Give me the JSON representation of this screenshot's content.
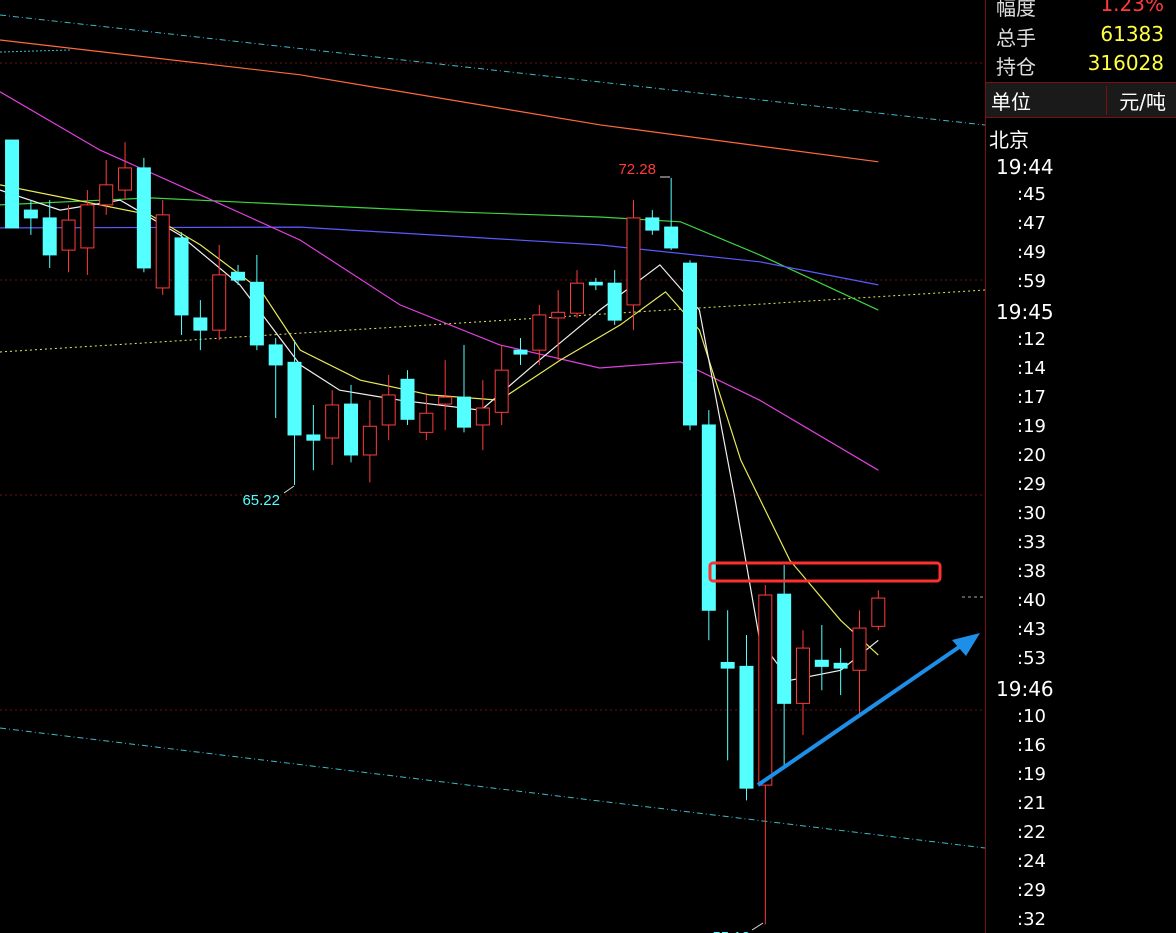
{
  "chart_data": {
    "type": "candlestick",
    "up_color": "#ff3b3b",
    "down_color": "#54ffff",
    "xlim": [
      -0.64,
      51.4
    ],
    "ylim": [
      54.92,
      76.37
    ],
    "open": [
      73.15,
      71.54,
      71.36,
      70.62,
      70.67,
      71.66,
      72.0,
      72.51,
      69.75,
      70.9,
      69.06,
      68.78,
      70.11,
      69.88,
      68.44,
      68.04,
      66.37,
      66.3,
      67.08,
      65.91,
      66.6,
      67.65,
      66.43,
      67.08,
      67.24,
      66.6,
      66.89,
      68.32,
      68.32,
      69.06,
      69.17,
      69.88,
      69.86,
      69.36,
      71.36,
      71.15,
      70.32,
      66.6,
      61.14,
      61.05,
      58.32,
      62.71,
      60.2,
      61.19,
      61.12,
      60.96,
      61.97
    ],
    "high": [
      73.15,
      71.77,
      71.77,
      71.66,
      72.0,
      72.69,
      73.1,
      72.74,
      71.77,
      71.03,
      69.47,
      70.74,
      70.28,
      70.51,
      68.6,
      68.55,
      67.06,
      67.4,
      67.52,
      67.17,
      67.75,
      67.86,
      67.29,
      68.09,
      68.44,
      67.63,
      68.44,
      68.6,
      69.36,
      69.7,
      70.16,
      69.98,
      70.16,
      71.77,
      71.54,
      72.28,
      70.39,
      66.94,
      62.34,
      61.77,
      62.92,
      63.38,
      61.88,
      62.0,
      61.47,
      62.34,
      62.8
    ],
    "low": [
      71.13,
      70.97,
      70.21,
      70.11,
      70.05,
      71.43,
      71.77,
      70.11,
      69.59,
      68.67,
      68.32,
      68.55,
      69.82,
      68.32,
      66.76,
      65.22,
      65.56,
      65.68,
      65.74,
      65.28,
      66.25,
      66.6,
      66.25,
      66.48,
      66.43,
      66.02,
      66.6,
      67.98,
      67.98,
      68.09,
      69.06,
      69.7,
      68.9,
      68.78,
      70.97,
      70.62,
      66.48,
      61.65,
      58.89,
      57.97,
      55.12,
      58.78,
      59.47,
      60.5,
      60.39,
      59.93,
      61.88
    ],
    "close": [
      71.13,
      71.36,
      70.51,
      71.31,
      71.66,
      72.12,
      72.51,
      70.21,
      71.43,
      69.13,
      68.78,
      70.05,
      69.93,
      68.44,
      67.98,
      66.37,
      66.25,
      67.06,
      65.91,
      66.57,
      67.29,
      66.73,
      66.87,
      67.24,
      66.55,
      66.99,
      67.86,
      68.23,
      69.13,
      69.19,
      69.86,
      69.82,
      69.01,
      71.36,
      71.08,
      70.67,
      66.6,
      62.34,
      61.01,
      58.25,
      62.69,
      60.2,
      61.47,
      61.05,
      61.01,
      61.93,
      62.62
    ],
    "lines": [
      {
        "color": "#ff6a3c",
        "x": [
          -0.64,
          15.3,
          31.2,
          46
        ],
        "values": [
          75.45,
          74.65,
          73.5,
          72.65
        ]
      },
      {
        "color": "#3fd43f",
        "x": [
          -0.64,
          7.33,
          15.3,
          23.3,
          31.2,
          35.5,
          39.7,
          46
        ],
        "values": [
          71.66,
          71.82,
          71.66,
          71.5,
          71.38,
          71.27,
          70.51,
          69.24
        ]
      },
      {
        "color": "#5a5aff",
        "x": [
          -0.64,
          15.3,
          31.2,
          39.7,
          46
        ],
        "values": [
          71.13,
          71.15,
          70.74,
          70.35,
          69.82
        ]
      },
      {
        "color": "#e040e0",
        "x": [
          -0.64,
          4.67,
          10.0,
          15.3,
          20.6,
          25.9,
          31.2,
          35.5,
          39.7,
          46
        ],
        "values": [
          74.26,
          72.92,
          71.89,
          70.85,
          69.36,
          68.44,
          67.91,
          68.05,
          67.17,
          65.56
        ]
      },
      {
        "color": "#e8e85a",
        "x": [
          -0.64,
          4.67,
          7.33,
          10.0,
          13.2,
          15.3,
          18.5,
          22.2,
          25.9,
          29.1,
          32.3,
          34.7,
          36.5,
          38.7,
          41.3,
          44.0,
          46
        ],
        "values": [
          72.12,
          71.66,
          71.43,
          70.74,
          69.7,
          68.32,
          67.63,
          67.29,
          67.17,
          68.09,
          68.9,
          69.66,
          68.78,
          65.79,
          63.49,
          62.11,
          61.31
        ]
      },
      {
        "color": "#f0f0f0",
        "x": [
          -0.64,
          2.55,
          5.74,
          8.9,
          12.1,
          15.3,
          17.4,
          20.6,
          24.9,
          28.0,
          31.2,
          34.4,
          36.5,
          38.4,
          39.7,
          41.3,
          44.0,
          46
        ],
        "values": [
          72.0,
          71.54,
          71.77,
          70.97,
          69.82,
          67.98,
          67.4,
          67.17,
          66.94,
          68.09,
          69.24,
          70.28,
          69.24,
          64.87,
          61.65,
          60.73,
          60.96,
          61.65
        ]
      }
    ]
  },
  "panel": {
    "stats": [
      {
        "label": "幅度",
        "value": "1.23%"
      },
      {
        "label": "总手",
        "value": "61383"
      },
      {
        "label": "持仓",
        "value": "316028"
      }
    ],
    "unit_label": "单位",
    "unit": "元/吨",
    "location": "北京",
    "times": [
      "19:44",
      ":45",
      ":47",
      ":49",
      ":59",
      "19:45",
      ":12",
      ":14",
      ":17",
      ":19",
      ":20",
      ":29",
      ":30",
      ":33",
      ":38",
      ":40",
      ":43",
      ":53",
      "19:46",
      ":10",
      ":16",
      ":19",
      ":21",
      ":22",
      ":24",
      ":29",
      ":32"
    ]
  }
}
